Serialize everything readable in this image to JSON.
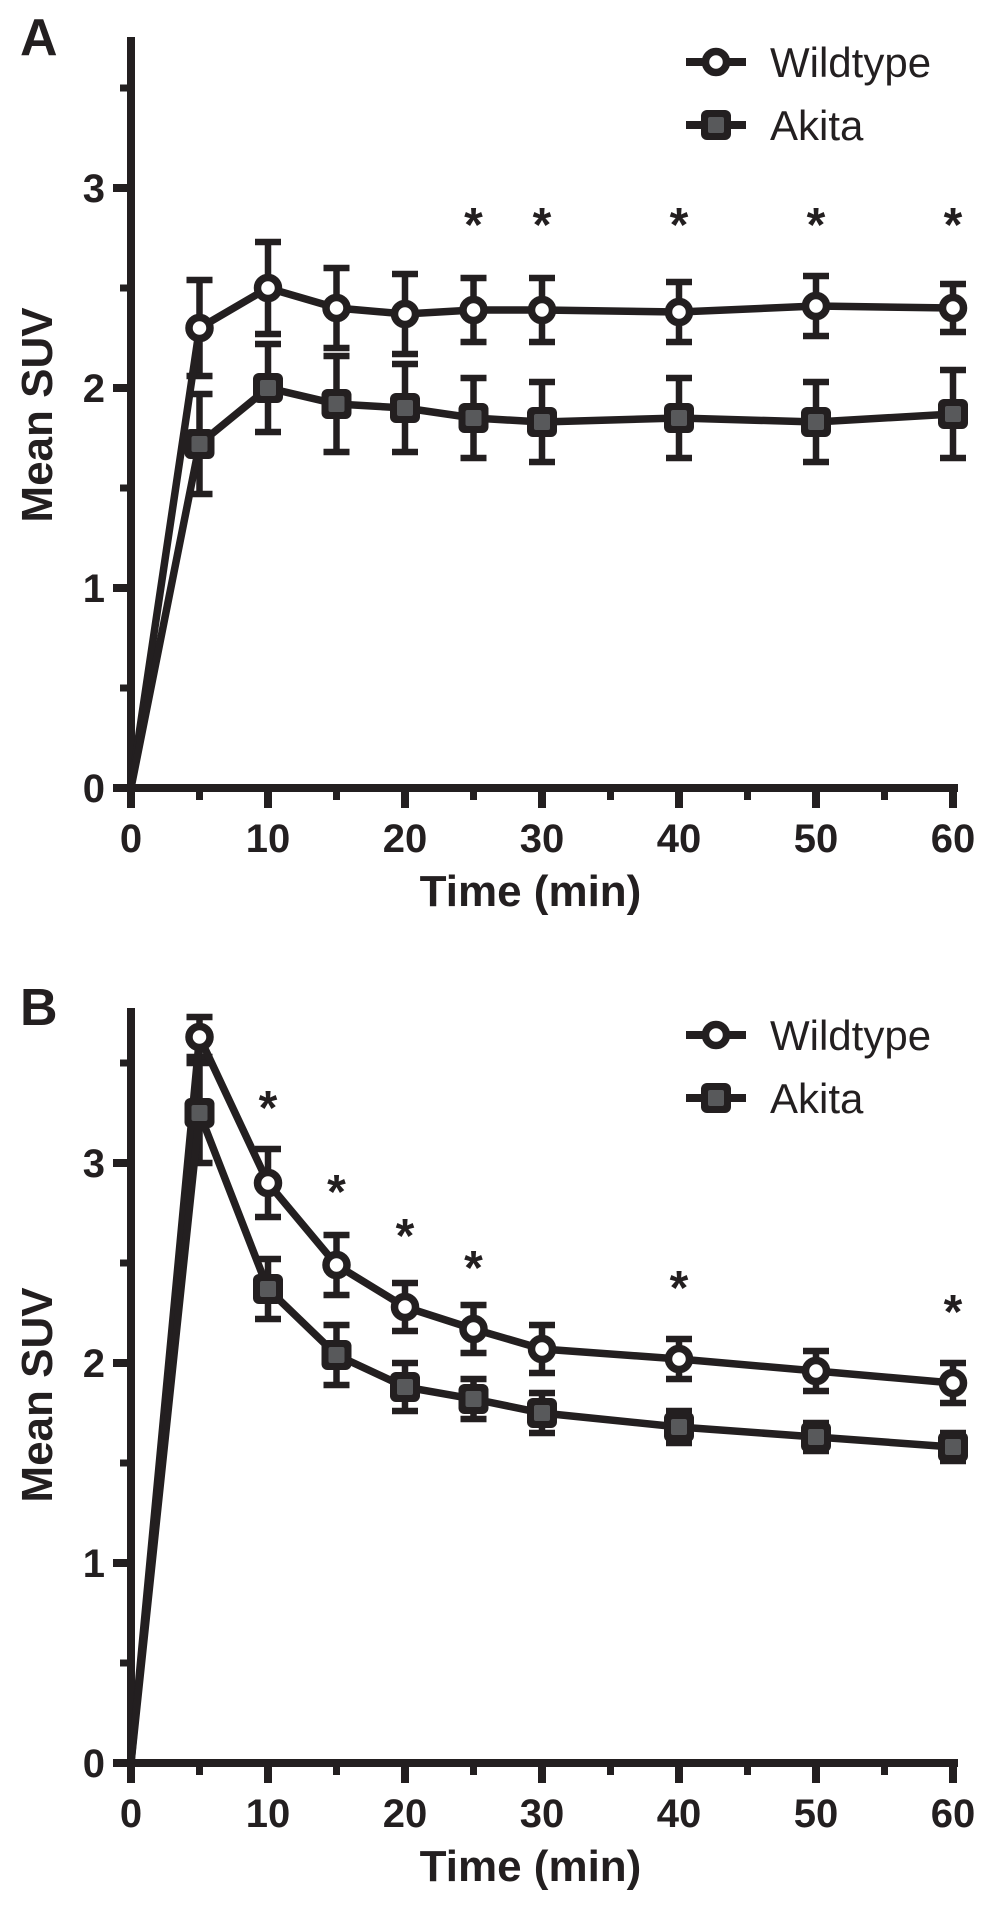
{
  "figure": {
    "background": "#ffffff",
    "ink_color": "#231f20",
    "marker_open_fill": "#ffffff",
    "square_inner_fill": "#58595b"
  },
  "chart_data": [
    {
      "type": "line",
      "panel_label": "A",
      "xlabel": "Time (min)",
      "ylabel": "Mean SUV",
      "x": [
        0,
        5,
        10,
        15,
        20,
        25,
        30,
        40,
        50,
        60
      ],
      "xlim": [
        0,
        60
      ],
      "ylim": [
        0,
        3.75
      ],
      "x_major_ticks": [
        0,
        10,
        20,
        30,
        40,
        50,
        60
      ],
      "x_minor_ticks": [
        5,
        15,
        25,
        35,
        45,
        55
      ],
      "y_major_ticks": [
        0,
        1,
        2,
        3
      ],
      "y_minor_ticks": [
        0.5,
        1.5,
        2.5,
        3.5
      ],
      "grid": false,
      "legend_position": "top-right",
      "series": [
        {
          "name": "Wildtype",
          "marker": "circle",
          "values": [
            0,
            2.3,
            2.5,
            2.4,
            2.37,
            2.39,
            2.39,
            2.38,
            2.41,
            2.4
          ],
          "errors": [
            0,
            0.24,
            0.23,
            0.2,
            0.2,
            0.16,
            0.16,
            0.15,
            0.15,
            0.12
          ]
        },
        {
          "name": "Akita",
          "marker": "square",
          "values": [
            0,
            1.72,
            2.0,
            1.92,
            1.9,
            1.85,
            1.83,
            1.85,
            1.83,
            1.87
          ],
          "errors": [
            0,
            0.25,
            0.22,
            0.24,
            0.22,
            0.2,
            0.2,
            0.2,
            0.2,
            0.22
          ]
        }
      ],
      "significance": {
        "symbol": "*",
        "marks": [
          {
            "x": 25,
            "y": 2.86
          },
          {
            "x": 30,
            "y": 2.86
          },
          {
            "x": 40,
            "y": 2.86
          },
          {
            "x": 50,
            "y": 2.86
          },
          {
            "x": 60,
            "y": 2.86
          }
        ]
      }
    },
    {
      "type": "line",
      "panel_label": "B",
      "xlabel": "Time (min)",
      "ylabel": "Mean SUV",
      "x": [
        0,
        5,
        10,
        15,
        20,
        25,
        30,
        40,
        50,
        60
      ],
      "xlim": [
        0,
        60
      ],
      "ylim": [
        0,
        3.75
      ],
      "x_major_ticks": [
        0,
        10,
        20,
        30,
        40,
        50,
        60
      ],
      "x_minor_ticks": [
        5,
        15,
        25,
        35,
        45,
        55
      ],
      "y_major_ticks": [
        0,
        1,
        2,
        3
      ],
      "y_minor_ticks": [
        0.5,
        1.5,
        2.5,
        3.5
      ],
      "grid": false,
      "legend_position": "top-right",
      "series": [
        {
          "name": "Wildtype",
          "marker": "circle",
          "values": [
            0,
            3.63,
            2.9,
            2.49,
            2.28,
            2.17,
            2.07,
            2.02,
            1.96,
            1.9
          ],
          "errors": [
            0,
            0.1,
            0.17,
            0.15,
            0.12,
            0.12,
            0.12,
            0.1,
            0.1,
            0.1
          ]
        },
        {
          "name": "Akita",
          "marker": "square",
          "values": [
            0,
            3.25,
            2.37,
            2.04,
            1.88,
            1.82,
            1.75,
            1.68,
            1.63,
            1.58
          ],
          "errors": [
            0,
            0.25,
            0.15,
            0.15,
            0.12,
            0.1,
            0.1,
            0.08,
            0.07,
            0.07
          ]
        }
      ],
      "significance": {
        "symbol": "*",
        "marks": [
          {
            "x": 10,
            "y": 3.32
          },
          {
            "x": 15,
            "y": 2.9
          },
          {
            "x": 20,
            "y": 2.68
          },
          {
            "x": 25,
            "y": 2.52
          },
          {
            "x": 40,
            "y": 2.42
          },
          {
            "x": 60,
            "y": 2.3
          }
        ]
      }
    }
  ]
}
